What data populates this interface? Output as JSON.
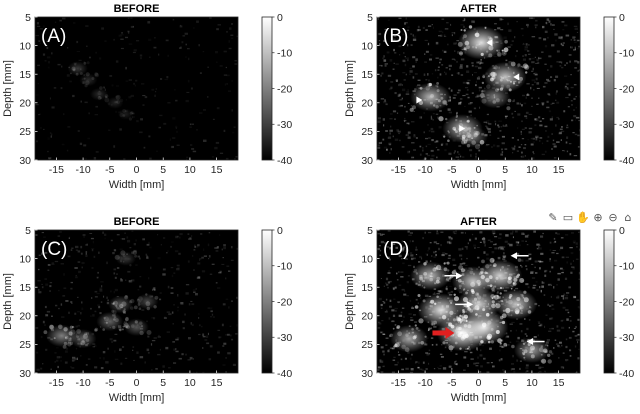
{
  "chart_data": [
    {
      "type": "heatmap",
      "panel_label": "(A)",
      "title": "BEFORE",
      "xlabel": "Width [mm]",
      "ylabel": "Depth [mm]",
      "xlim": [
        -19,
        19
      ],
      "ylim": [
        5,
        30
      ],
      "y_inverted": true,
      "xticks": [
        -15,
        -10,
        -5,
        0,
        5,
        10,
        15
      ],
      "yticks": [
        5,
        10,
        15,
        20,
        25,
        30
      ],
      "colorbar": {
        "range": [
          -40,
          0
        ],
        "ticks": [
          0,
          -10,
          -20,
          -30,
          -40
        ],
        "colormap": "gray"
      },
      "bright_regions": [
        {
          "x": -11,
          "y": 14,
          "level": -32
        },
        {
          "x": -9,
          "y": 16,
          "level": -34
        },
        {
          "x": -7,
          "y": 18.5,
          "level": -34
        },
        {
          "x": -4,
          "y": 20,
          "level": -35
        },
        {
          "x": -2,
          "y": 22,
          "level": -36
        }
      ],
      "markers": []
    },
    {
      "type": "heatmap",
      "panel_label": "(B)",
      "title": "AFTER",
      "xlabel": "Width [mm]",
      "ylabel": "Depth [mm]",
      "xlim": [
        -19,
        19
      ],
      "ylim": [
        5,
        30
      ],
      "y_inverted": true,
      "xticks": [
        -15,
        -10,
        -5,
        0,
        5,
        10,
        15
      ],
      "yticks": [
        5,
        10,
        15,
        20,
        25,
        30
      ],
      "colorbar": {
        "range": [
          -40,
          0
        ],
        "ticks": [
          0,
          -10,
          -20,
          -30,
          -40
        ],
        "colormap": "gray"
      },
      "bright_regions": [
        {
          "x": 0.5,
          "y": 9.5,
          "level": -8
        },
        {
          "x": 5,
          "y": 15.5,
          "level": -12
        },
        {
          "x": -9,
          "y": 19,
          "level": -14
        },
        {
          "x": -3,
          "y": 24.5,
          "level": -14
        },
        {
          "x": 3,
          "y": 19,
          "level": -22
        },
        {
          "x": -1,
          "y": 26,
          "level": -24
        }
      ],
      "markers": [
        {
          "kind": "arrowhead",
          "color": "#ffffff",
          "x": 1.5,
          "y": 9.5,
          "dir": "left"
        },
        {
          "kind": "arrowhead",
          "color": "#ffffff",
          "x": 6.5,
          "y": 15.5,
          "dir": "left"
        },
        {
          "kind": "arrowhead",
          "color": "#ffffff",
          "x": -10.5,
          "y": 19.5,
          "dir": "right"
        },
        {
          "kind": "arrowhead",
          "color": "#ffffff",
          "x": -2.5,
          "y": 24.5,
          "dir": "right"
        }
      ]
    },
    {
      "type": "heatmap",
      "panel_label": "(C)",
      "title": "BEFORE",
      "xlabel": "Width [mm]",
      "ylabel": "Depth [mm]",
      "xlim": [
        -19,
        19
      ],
      "ylim": [
        5,
        30
      ],
      "y_inverted": true,
      "xticks": [
        -15,
        -10,
        -5,
        0,
        5,
        10,
        15
      ],
      "yticks": [
        5,
        10,
        15,
        20,
        25,
        30
      ],
      "colorbar": {
        "range": [
          -40,
          0
        ],
        "ticks": [
          0,
          -10,
          -20,
          -30,
          -40
        ],
        "colormap": "gray"
      },
      "bright_regions": [
        {
          "x": -14,
          "y": 23.5,
          "level": -22
        },
        {
          "x": -10,
          "y": 24,
          "level": -26
        },
        {
          "x": -5,
          "y": 21,
          "level": -26
        },
        {
          "x": -3,
          "y": 18,
          "level": -28
        },
        {
          "x": 0,
          "y": 22,
          "level": -28
        },
        {
          "x": 2,
          "y": 17.5,
          "level": -30
        },
        {
          "x": -2,
          "y": 10,
          "level": -32
        }
      ],
      "markers": []
    },
    {
      "type": "heatmap",
      "panel_label": "(D)",
      "title": "AFTER",
      "xlabel": "Width [mm]",
      "ylabel": "Depth [mm]",
      "xlim": [
        -19,
        19
      ],
      "ylim": [
        5,
        30
      ],
      "y_inverted": true,
      "xticks": [
        -15,
        -10,
        -5,
        0,
        5,
        10,
        15
      ],
      "yticks": [
        5,
        10,
        15,
        20,
        25,
        30
      ],
      "colorbar": {
        "range": [
          -40,
          0
        ],
        "ticks": [
          0,
          -10,
          -20,
          -30,
          -40
        ],
        "colormap": "gray"
      },
      "bright_regions": [
        {
          "x": -3,
          "y": 23,
          "level": -4
        },
        {
          "x": 1,
          "y": 22,
          "level": -6
        },
        {
          "x": -7,
          "y": 19,
          "level": -8
        },
        {
          "x": 4,
          "y": 13,
          "level": -10
        },
        {
          "x": 0,
          "y": 18,
          "level": -10
        },
        {
          "x": -1,
          "y": 14,
          "level": -12
        },
        {
          "x": 7,
          "y": 18,
          "level": -12
        },
        {
          "x": -9,
          "y": 13,
          "level": -14
        },
        {
          "x": -13,
          "y": 24,
          "level": -16
        },
        {
          "x": 10,
          "y": 26,
          "level": -18
        }
      ],
      "markers": [
        {
          "kind": "arrow",
          "color": "#ffffff",
          "x": 6,
          "y": 9.5,
          "dir": "left"
        },
        {
          "kind": "arrow",
          "color": "#ffffff",
          "x": -3,
          "y": 13,
          "dir": "right"
        },
        {
          "kind": "arrow",
          "color": "#ffffff",
          "x": -1,
          "y": 18,
          "dir": "right"
        },
        {
          "kind": "arrow",
          "color": "#ffffff",
          "x": 9,
          "y": 24.5,
          "dir": "left"
        },
        {
          "kind": "arrow",
          "color": "#e02020",
          "x": -4.5,
          "y": 23,
          "dir": "right"
        }
      ]
    }
  ],
  "toolbar": {
    "icons": [
      "brush-icon",
      "data-cursor-icon",
      "pan-icon",
      "zoom-in-icon",
      "zoom-out-icon",
      "home-icon"
    ],
    "glyphs": [
      "✎",
      "▭",
      "✋",
      "⊕",
      "⊖",
      "⌂"
    ]
  }
}
